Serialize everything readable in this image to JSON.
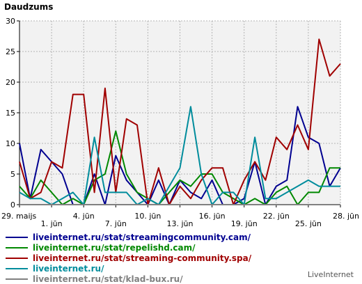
{
  "chart_data": {
    "type": "line",
    "title": "Daudzums",
    "ylim": [
      0,
      30
    ],
    "yticks": [
      0,
      5,
      10,
      15,
      20,
      25,
      30
    ],
    "x_labels": [
      "29. maijs",
      "1. jūn",
      "4. jūn",
      "7. jūn",
      "10. jūn",
      "13. jūn",
      "16. jūn",
      "19. jūn",
      "22. jūn",
      "25. jūn",
      "28. jūn"
    ],
    "x_label_indices": [
      0,
      3,
      6,
      9,
      12,
      15,
      18,
      21,
      24,
      27,
      30
    ],
    "grid": true,
    "series": [
      {
        "name": "liveinternet.ru/stat/streamingcommunity.cam/",
        "color": "#000090",
        "values": [
          10,
          1,
          9,
          7,
          5,
          0,
          0,
          5,
          0,
          8,
          4,
          2,
          0,
          4,
          0,
          4,
          2,
          1,
          4,
          0,
          0,
          1,
          7,
          0,
          3,
          4,
          16,
          11,
          10,
          3,
          6
        ]
      },
      {
        "name": "liveinternet.ru/stat/repelishd.cam/",
        "color": "#008800",
        "values": [
          3,
          1,
          4,
          2,
          0,
          1,
          0,
          4,
          5,
          12,
          5,
          2,
          1,
          0,
          2,
          4,
          3,
          5,
          5,
          2,
          1,
          0,
          1,
          0,
          2,
          3,
          0,
          2,
          2,
          6,
          6
        ]
      },
      {
        "name": "liveinternet.ru/stat/streaming-community.spa/",
        "color": "#a00000",
        "values": [
          7,
          1,
          2,
          7,
          6,
          18,
          18,
          2,
          19,
          2,
          14,
          13,
          0,
          6,
          0,
          3,
          1,
          4,
          6,
          6,
          0,
          4,
          7,
          4,
          11,
          9,
          13,
          9,
          27,
          21,
          23
        ]
      },
      {
        "name": "liveinternet.ru/",
        "color": "#008c9c",
        "values": [
          2,
          1,
          1,
          0,
          1,
          2,
          0,
          11,
          2,
          2,
          2,
          0,
          1,
          0,
          3,
          6,
          16,
          5,
          0,
          2,
          2,
          0,
          11,
          1,
          1,
          2,
          3,
          4,
          3,
          3,
          3
        ]
      },
      {
        "name": "liveinternet.ru/stat/klad-bux.ru/",
        "color": "#808080",
        "values": [
          0,
          0,
          0,
          0,
          0,
          0,
          0,
          0,
          0,
          0,
          0,
          0,
          0,
          0,
          0,
          0,
          0,
          0,
          0,
          0,
          0,
          0,
          0,
          0,
          0,
          0,
          0,
          0,
          0,
          0,
          0
        ]
      }
    ]
  },
  "footer": {
    "watermark": "LiveInternet"
  }
}
